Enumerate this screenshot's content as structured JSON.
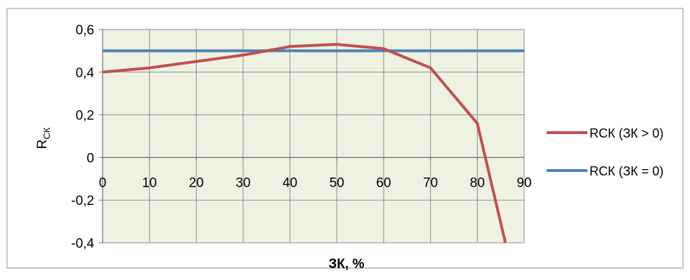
{
  "chart_data": {
    "type": "line",
    "title": "",
    "xlabel": "ЗК, %",
    "ylabel_main": "R",
    "ylabel_sub": "СК",
    "x_ticks": [
      0,
      10,
      20,
      30,
      40,
      50,
      60,
      70,
      80,
      90
    ],
    "x_tick_labels": [
      "0",
      "10",
      "20",
      "30",
      "40",
      "50",
      "60",
      "70",
      "80",
      "90"
    ],
    "y_ticks": [
      0.6,
      0.4,
      0.2,
      0,
      -0.2,
      -0.4
    ],
    "y_tick_labels": [
      "0,6",
      "0,4",
      "0,2",
      "0",
      "-0,2",
      "-0,4"
    ],
    "xlim": [
      0,
      90
    ],
    "ylim": [
      -0.4,
      0.6
    ],
    "grid": true,
    "plot_background": "#eef2e2",
    "legend_position": "right",
    "series": [
      {
        "name": "RСК (ЗК > 0)",
        "color": "#c0504d",
        "x": [
          0,
          10,
          20,
          30,
          40,
          50,
          60,
          70,
          80,
          86
        ],
        "y": [
          0.4,
          0.42,
          0.45,
          0.48,
          0.52,
          0.53,
          0.51,
          0.42,
          0.16,
          -0.4
        ]
      },
      {
        "name": "RСК (ЗК = 0)",
        "color": "#4f81bd",
        "x": [
          0,
          90
        ],
        "y": [
          0.5,
          0.5
        ]
      }
    ]
  }
}
